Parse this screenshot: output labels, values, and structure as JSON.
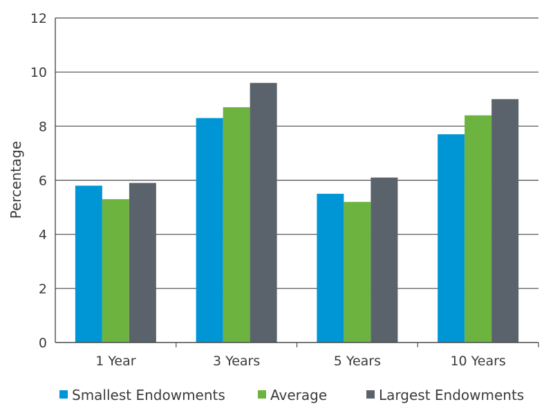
{
  "chart_data": {
    "type": "bar",
    "title": "",
    "xlabel": "",
    "ylabel": "Percentage",
    "ylim": [
      0,
      12
    ],
    "yticks": [
      0,
      2,
      4,
      6,
      8,
      10,
      12
    ],
    "grid": true,
    "legend_position": "bottom",
    "categories": [
      "1 Year",
      "3 Years",
      "5 Years",
      "10 Years"
    ],
    "series": [
      {
        "name": "Smallest Endowments",
        "color": "#0096d6",
        "values": [
          5.8,
          8.3,
          5.5,
          7.7
        ]
      },
      {
        "name": "Average",
        "color": "#6cb33f",
        "values": [
          5.3,
          8.7,
          5.2,
          8.4
        ]
      },
      {
        "name": "Largest Endowments",
        "color": "#5a636b",
        "values": [
          5.9,
          9.6,
          6.1,
          9.0
        ]
      }
    ]
  }
}
